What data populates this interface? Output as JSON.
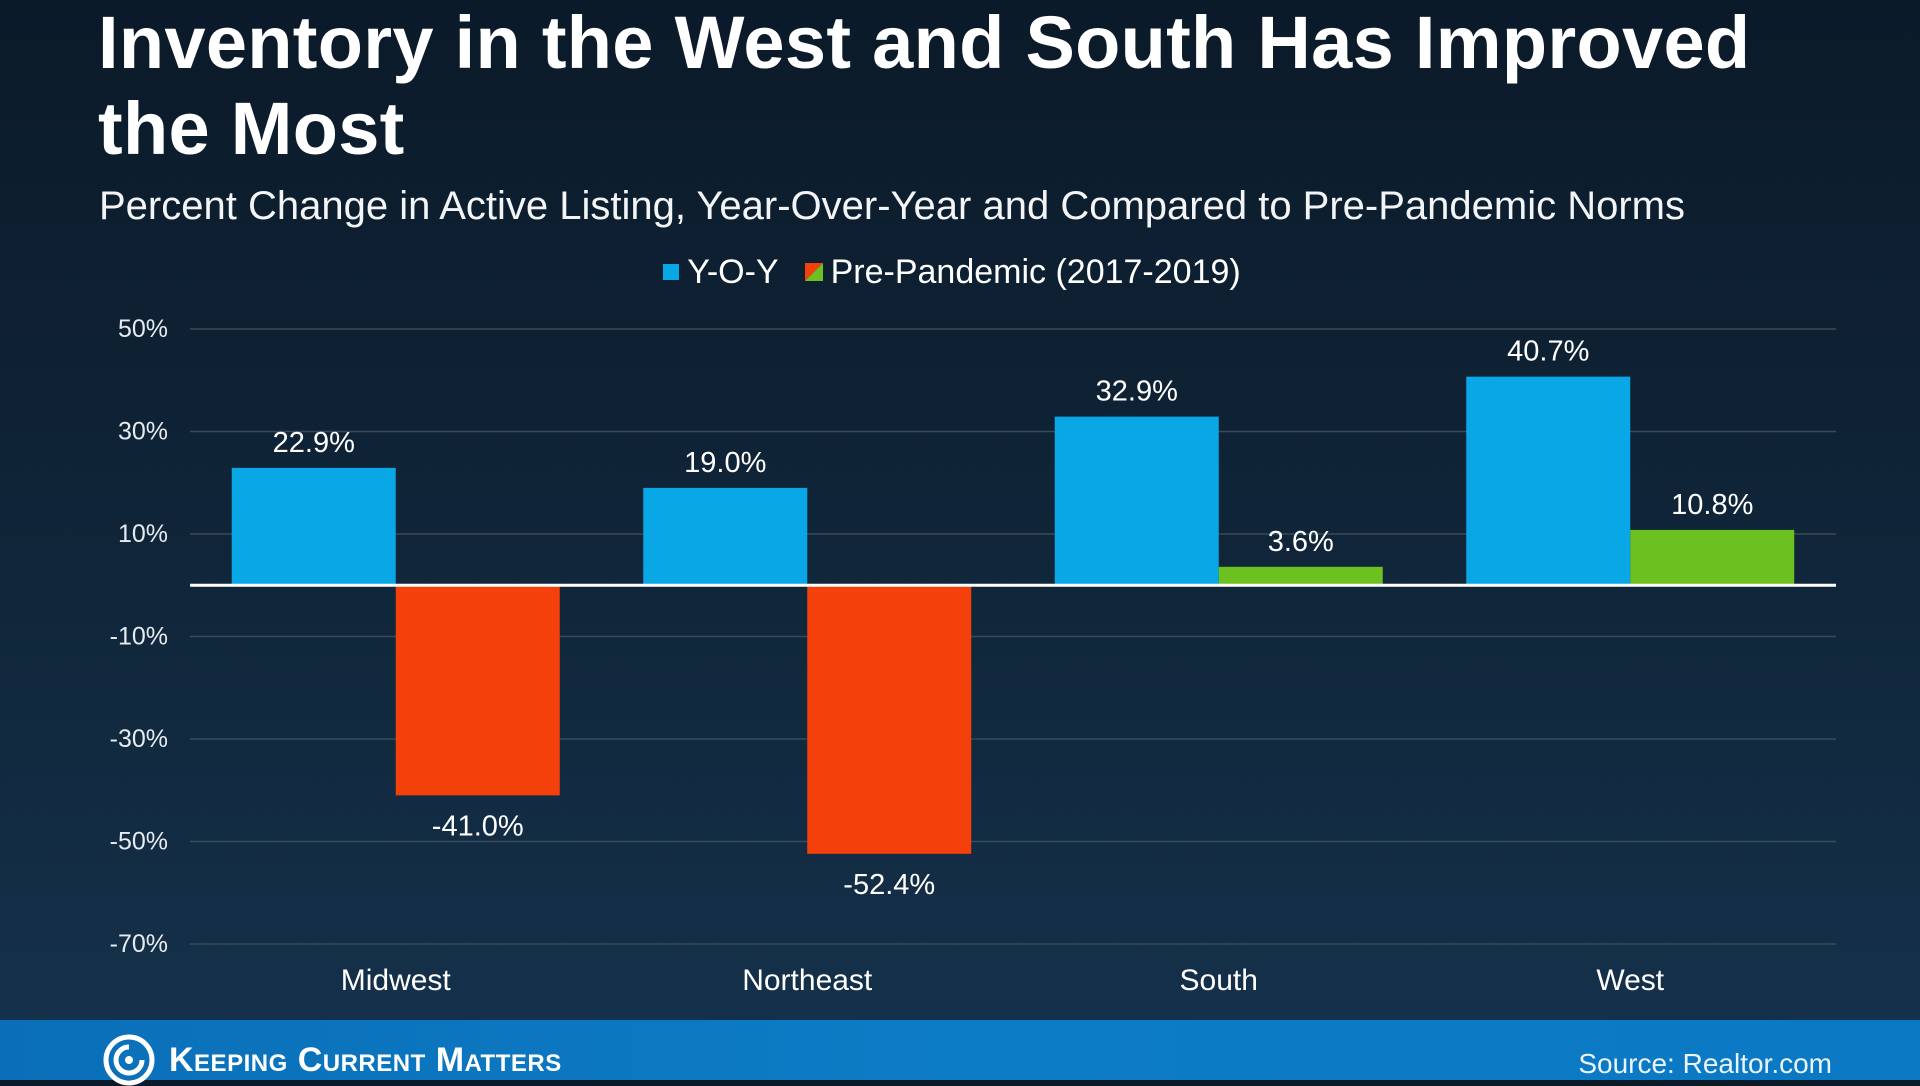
{
  "header": {
    "title": "Inventory in the West and South Has Improved the Most",
    "subtitle": "Percent Change in Active Listing, Year-Over-Year and Compared to Pre-Pandemic Norms"
  },
  "footer": {
    "brand": "Keeping Current Matters",
    "source": "Source: Realtor.com"
  },
  "colors": {
    "yoy": "#0aa7e6",
    "pre_negative": "#f4400b",
    "pre_positive": "#6cc01f",
    "grid": "#3a4a58",
    "zero_line": "#ffffff"
  },
  "chart_data": {
    "type": "bar",
    "categories": [
      "Midwest",
      "Northeast",
      "South",
      "West"
    ],
    "series": [
      {
        "name": "Y-O-Y",
        "values": [
          22.9,
          19.0,
          32.9,
          40.7
        ],
        "labels": [
          "22.9%",
          "19.0%",
          "32.9%",
          "40.7%"
        ]
      },
      {
        "name": "Pre-Pandemic (2017-2019)",
        "values": [
          -41.0,
          -52.4,
          3.6,
          10.8
        ],
        "labels": [
          "-41.0%",
          "-52.4%",
          "3.6%",
          "10.8%"
        ]
      }
    ],
    "ylim": [
      -70,
      50
    ],
    "yticks": [
      50,
      30,
      10,
      -10,
      -30,
      -50,
      -70
    ],
    "ytick_labels": [
      "50%",
      "30%",
      "10%",
      "-10%",
      "-30%",
      "-50%",
      "-70%"
    ],
    "grid": true,
    "legend_position": "top-center",
    "xlabel": "",
    "ylabel": ""
  }
}
